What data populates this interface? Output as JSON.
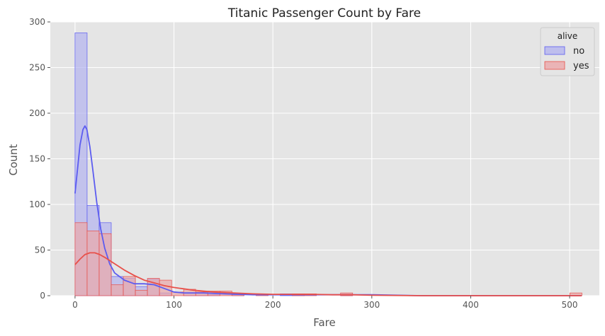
{
  "chart_data": {
    "type": "histogram",
    "title": "Titanic Passenger Count by Fare",
    "xlabel": "Fare",
    "ylabel": "Count",
    "xlim": [
      -25,
      530
    ],
    "ylim": [
      0,
      300
    ],
    "x_ticks": [
      0,
      100,
      200,
      300,
      400,
      500
    ],
    "y_ticks": [
      0,
      50,
      100,
      150,
      200,
      250,
      300
    ],
    "grid": true,
    "legend": {
      "title": "alive",
      "position": "top-right"
    },
    "bin_edges": [
      0,
      12.2,
      24.4,
      36.6,
      48.8,
      61.0,
      73.2,
      85.4,
      97.6,
      109.8,
      122.0,
      134.2,
      146.4,
      158.6,
      170.8,
      183.0,
      195.2,
      207.4,
      219.6,
      231.8,
      244.0,
      256.2,
      268.4,
      280.6,
      292.8,
      305.0,
      317.2,
      329.4,
      341.6,
      353.8,
      366.0,
      378.2,
      390.4,
      402.6,
      414.8,
      427.0,
      439.2,
      451.4,
      463.6,
      475.8,
      488.0,
      500.2,
      512.4
    ],
    "series": [
      {
        "name": "no",
        "color": "#5c5cf0",
        "fill": "#b4b4ef",
        "counts": [
          288,
          99,
          80,
          21,
          19,
          10,
          18,
          3,
          0,
          3,
          3,
          1,
          0,
          1,
          0,
          0,
          0,
          2,
          2,
          0,
          0,
          0,
          1,
          0,
          0,
          0,
          0,
          0,
          0,
          0,
          0,
          0,
          0,
          0,
          0,
          0,
          0,
          0,
          0,
          0,
          0,
          0
        ],
        "kde_x": [
          0,
          5,
          8,
          10,
          12,
          15,
          18,
          22,
          26,
          30,
          35,
          40,
          50,
          60,
          70,
          80,
          90,
          100,
          110,
          120,
          130,
          150,
          180,
          220,
          260,
          300,
          350,
          400,
          450,
          512
        ],
        "kde_y": [
          112,
          165,
          182,
          186,
          182,
          163,
          138,
          102,
          73,
          52,
          35,
          25,
          17,
          13,
          13,
          12,
          8,
          4,
          3,
          3,
          3,
          2,
          1,
          1,
          1,
          1,
          0,
          0,
          0,
          0
        ]
      },
      {
        "name": "yes",
        "color": "#e8504a",
        "fill": "#eba8aa",
        "counts": [
          80,
          71,
          68,
          12,
          21,
          6,
          19,
          17,
          4,
          7,
          4,
          5,
          5,
          2,
          0,
          1,
          0,
          0,
          2,
          2,
          0,
          0,
          3,
          0,
          0,
          0,
          0,
          0,
          0,
          0,
          0,
          0,
          0,
          0,
          0,
          0,
          0,
          0,
          0,
          0,
          0,
          3
        ],
        "kde_x": [
          0,
          5,
          10,
          15,
          20,
          25,
          30,
          40,
          50,
          60,
          70,
          80,
          90,
          100,
          120,
          140,
          160,
          180,
          200,
          220,
          240,
          260,
          280,
          300,
          350,
          400,
          450,
          512
        ],
        "kde_y": [
          34,
          40,
          45,
          47,
          47,
          45,
          42,
          35,
          28,
          22,
          17,
          14,
          11,
          9,
          6,
          4,
          3,
          2,
          1.5,
          1.5,
          1.5,
          1,
          1,
          0.5,
          0,
          0,
          0,
          0
        ]
      }
    ]
  }
}
